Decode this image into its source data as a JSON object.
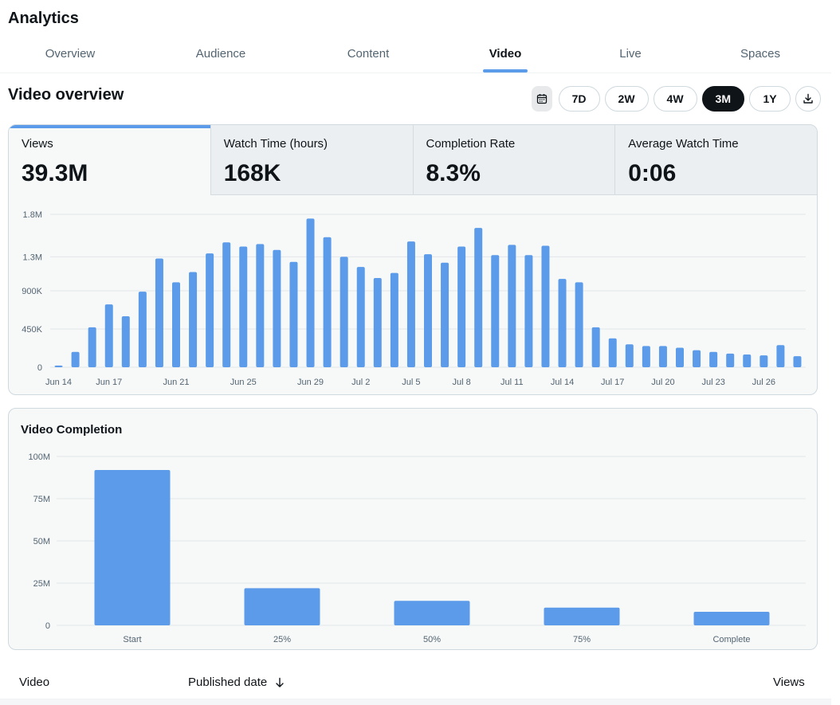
{
  "app": {
    "title": "Analytics"
  },
  "tabs": [
    {
      "label": "Overview",
      "active": false
    },
    {
      "label": "Audience",
      "active": false
    },
    {
      "label": "Content",
      "active": false
    },
    {
      "label": "Video",
      "active": true
    },
    {
      "label": "Live",
      "active": false
    },
    {
      "label": "Spaces",
      "active": false
    }
  ],
  "section": {
    "title": "Video overview"
  },
  "range": {
    "calendar_icon": "calendar-icon",
    "options": [
      "7D",
      "2W",
      "4W",
      "3M",
      "1Y"
    ],
    "selected": "3M",
    "download_icon": "download-icon"
  },
  "metrics": [
    {
      "label": "Views",
      "value": "39.3M",
      "selected": true
    },
    {
      "label": "Watch Time (hours)",
      "value": "168K",
      "selected": false
    },
    {
      "label": "Completion Rate",
      "value": "8.3%",
      "selected": false
    },
    {
      "label": "Average Watch Time",
      "value": "0:06",
      "selected": false
    }
  ],
  "colors": {
    "accent": "#5b9be9",
    "dark": "#0f1419",
    "muted": "#536471"
  },
  "chart_data": [
    {
      "type": "bar",
      "title": "",
      "ylim": [
        0,
        1800000
      ],
      "yticks": [
        {
          "value": 0,
          "label": "0"
        },
        {
          "value": 450000,
          "label": "450K"
        },
        {
          "value": 900000,
          "label": "900K"
        },
        {
          "value": 1300000,
          "label": "1.3M"
        },
        {
          "value": 1800000,
          "label": "1.8M"
        }
      ],
      "xtick_labels": [
        {
          "index": 0,
          "label": "Jun 14"
        },
        {
          "index": 3,
          "label": "Jun 17"
        },
        {
          "index": 7,
          "label": "Jun 21"
        },
        {
          "index": 11,
          "label": "Jun 25"
        },
        {
          "index": 15,
          "label": "Jun 29"
        },
        {
          "index": 18,
          "label": "Jul 2"
        },
        {
          "index": 21,
          "label": "Jul 5"
        },
        {
          "index": 24,
          "label": "Jul 8"
        },
        {
          "index": 27,
          "label": "Jul 11"
        },
        {
          "index": 30,
          "label": "Jul 14"
        },
        {
          "index": 33,
          "label": "Jul 17"
        },
        {
          "index": 36,
          "label": "Jul 20"
        },
        {
          "index": 39,
          "label": "Jul 23"
        },
        {
          "index": 42,
          "label": "Jul 26"
        }
      ],
      "categories": [
        "Jun 14",
        "Jun 15",
        "Jun 16",
        "Jun 17",
        "Jun 18",
        "Jun 19",
        "Jun 20",
        "Jun 21",
        "Jun 22",
        "Jun 23",
        "Jun 24",
        "Jun 25",
        "Jun 26",
        "Jun 27",
        "Jun 28",
        "Jun 29",
        "Jun 30",
        "Jul 1",
        "Jul 2",
        "Jul 3",
        "Jul 4",
        "Jul 5",
        "Jul 6",
        "Jul 7",
        "Jul 8",
        "Jul 9",
        "Jul 10",
        "Jul 11",
        "Jul 12",
        "Jul 13",
        "Jul 14",
        "Jul 15",
        "Jul 16",
        "Jul 17",
        "Jul 18",
        "Jul 19",
        "Jul 20",
        "Jul 21",
        "Jul 22",
        "Jul 23",
        "Jul 24",
        "Jul 25",
        "Jul 26",
        "Jul 27",
        "Jul 28"
      ],
      "values": [
        20000,
        180000,
        470000,
        740000,
        600000,
        890000,
        1280000,
        1000000,
        1120000,
        1340000,
        1470000,
        1420000,
        1450000,
        1380000,
        1240000,
        1750000,
        1530000,
        1300000,
        1180000,
        1050000,
        1110000,
        1480000,
        1330000,
        1230000,
        1420000,
        1640000,
        1320000,
        1440000,
        1320000,
        1430000,
        1040000,
        1000000,
        470000,
        340000,
        270000,
        250000,
        250000,
        230000,
        200000,
        180000,
        160000,
        150000,
        140000,
        260000,
        130000
      ],
      "grid": true,
      "legend": "none"
    },
    {
      "type": "bar",
      "title": "Video Completion",
      "ylim": [
        0,
        100000000
      ],
      "yticks": [
        {
          "value": 0,
          "label": "0"
        },
        {
          "value": 25000000,
          "label": "25M"
        },
        {
          "value": 50000000,
          "label": "50M"
        },
        {
          "value": 75000000,
          "label": "75M"
        },
        {
          "value": 100000000,
          "label": "100M"
        }
      ],
      "categories": [
        "Start",
        "25%",
        "50%",
        "75%",
        "Complete"
      ],
      "values": [
        92000000,
        22000000,
        14500000,
        10500000,
        8000000
      ],
      "grid": true,
      "legend": "none"
    }
  ],
  "table": {
    "columns": [
      {
        "label": "Video"
      },
      {
        "label": "Published date",
        "sort_icon": "arrow-down-icon"
      },
      {
        "label": "Views"
      }
    ]
  }
}
